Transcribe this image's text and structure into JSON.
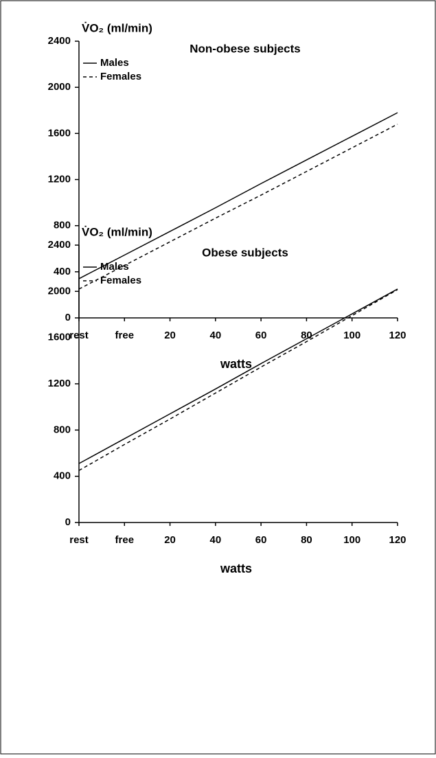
{
  "chart_data": [
    {
      "type": "line",
      "title": "Non-obese subjects",
      "y_label": "V̇O₂ (ml/min)",
      "x_label": "watts",
      "categories": [
        "rest",
        "free",
        "20",
        "40",
        "60",
        "80",
        "100",
        "120"
      ],
      "series": [
        {
          "name": "Males",
          "color": "#000000",
          "linestyle": "solid",
          "values": [
            340,
            545,
            750,
            955,
            1165,
            1370,
            1575,
            1780
          ]
        },
        {
          "name": "Females",
          "color": "#000000",
          "linestyle": "dashed",
          "values": [
            250,
            455,
            660,
            865,
            1065,
            1270,
            1475,
            1680
          ]
        }
      ],
      "ylim": [
        0,
        2400
      ],
      "yticks": [
        0,
        400,
        800,
        1200,
        1600,
        2000,
        2400
      ],
      "legend": "upper left"
    },
    {
      "type": "line",
      "title": "Obese subjects",
      "y_label": "V̇O₂ (ml/min)",
      "x_label": "watts",
      "categories": [
        "rest",
        "free",
        "20",
        "40",
        "60",
        "80",
        "100",
        "120"
      ],
      "series": [
        {
          "name": "Males",
          "color": "#000000",
          "linestyle": "solid",
          "values": [
            510,
            725,
            940,
            1155,
            1375,
            1590,
            1805,
            2020
          ]
        },
        {
          "name": "Females",
          "color": "#000000",
          "linestyle": "dashed",
          "values": [
            450,
            675,
            895,
            1120,
            1345,
            1565,
            1790,
            2015
          ]
        }
      ],
      "ylim": [
        0,
        2400
      ],
      "yticks": [
        0,
        400,
        800,
        1200,
        1600,
        2000,
        2400
      ],
      "legend": "upper left"
    }
  ]
}
